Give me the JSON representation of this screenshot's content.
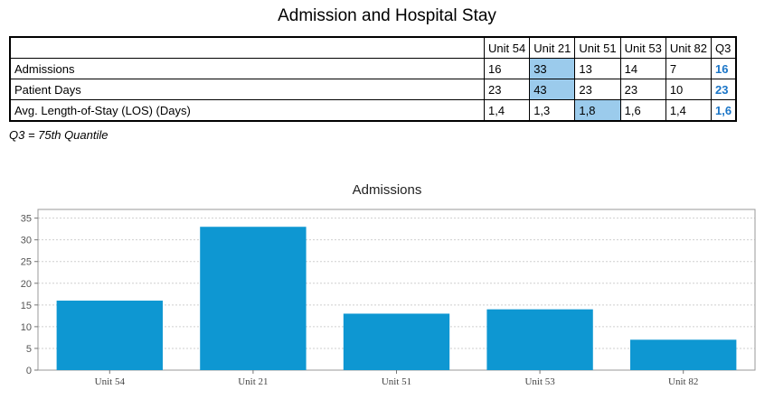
{
  "title": "Admission and Hospital Stay",
  "table": {
    "columns": [
      "",
      "Unit 54",
      "Unit 21",
      "Unit 51",
      "Unit 53",
      "Unit 82",
      "Q3"
    ],
    "rows": [
      {
        "label": "Admissions",
        "cells": [
          "16",
          "33",
          "13",
          "14",
          "7",
          "16"
        ]
      },
      {
        "label": "Patient Days",
        "cells": [
          "23",
          "43",
          "23",
          "23",
          "10",
          "23"
        ]
      },
      {
        "label": "Avg. Length-of-Stay (LOS) (Days)",
        "cells": [
          "1,4",
          "1,3",
          "1,8",
          "1,6",
          "1,4",
          "1,6"
        ]
      }
    ],
    "highlight_color": "#9bcbec",
    "q3_color": "#1a75c7"
  },
  "footnote": "Q3 = 75th Quantile",
  "chart_data": {
    "type": "bar",
    "title": "Admissions",
    "categories": [
      "Unit 54",
      "Unit 21",
      "Unit 51",
      "Unit 53",
      "Unit 82"
    ],
    "values": [
      16,
      33,
      13,
      14,
      7
    ],
    "ylim": [
      0,
      37
    ],
    "yticks": [
      0,
      5,
      10,
      15,
      20,
      25,
      30,
      35
    ],
    "grid": true,
    "color": "#0e97d2"
  }
}
